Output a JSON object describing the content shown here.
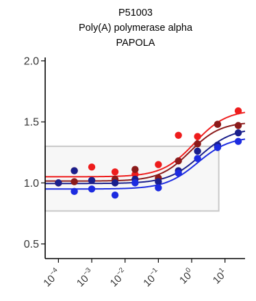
{
  "chart_data": {
    "type": "scatter",
    "title_lines": [
      "P51003",
      "Poly(A) polymerase alpha",
      "PAPOLA"
    ],
    "xlabel": "",
    "ylabel": "",
    "x_scale": "log10",
    "xlim": [
      4e-05,
      40
    ],
    "ylim": [
      0.38,
      2.05
    ],
    "y_ticks": [
      {
        "value": 0.5,
        "label": "0.5"
      },
      {
        "value": 1.0,
        "label": "1.0"
      },
      {
        "value": 1.5,
        "label": "1.5"
      },
      {
        "value": 2.0,
        "label": "2.0"
      }
    ],
    "x_ticks": [
      {
        "value": 0.0001,
        "base": "10",
        "exp": "−4"
      },
      {
        "value": 0.001,
        "base": "10",
        "exp": "−3"
      },
      {
        "value": 0.01,
        "base": "10",
        "exp": "−2"
      },
      {
        "value": 0.1,
        "base": "10",
        "exp": "−1"
      },
      {
        "value": 1,
        "base": "10",
        "exp": "0"
      },
      {
        "value": 10,
        "base": "10",
        "exp": "1"
      }
    ],
    "reference_box": {
      "x": [
        4e-05,
        6.5
      ],
      "y": [
        0.77,
        1.3
      ]
    },
    "series": [
      {
        "color": "#ee1c1c",
        "points": [
          [
            0.0001,
            1.0
          ],
          [
            0.0003,
            1.1
          ],
          [
            0.001,
            1.13
          ],
          [
            0.005,
            1.09
          ],
          [
            0.02,
            1.07
          ],
          [
            0.1,
            1.15
          ],
          [
            0.4,
            1.39
          ],
          [
            1.5,
            1.38
          ],
          [
            6,
            1.48
          ],
          [
            25,
            1.59
          ]
        ],
        "fit": {
          "bottom": 1.05,
          "top": 1.6,
          "ec50": 1.2,
          "hill": 0.9
        }
      },
      {
        "color": "#8b1a1a",
        "points": [
          [
            0.0001,
            1.0
          ],
          [
            0.0003,
            1.01
          ],
          [
            0.001,
            1.02
          ],
          [
            0.005,
            1.03
          ],
          [
            0.02,
            1.11
          ],
          [
            0.1,
            1.04
          ],
          [
            0.4,
            1.18
          ],
          [
            1.5,
            1.32
          ],
          [
            6,
            1.48
          ],
          [
            25,
            1.47
          ]
        ],
        "fit": {
          "bottom": 1.015,
          "top": 1.5,
          "ec50": 0.9,
          "hill": 0.95
        }
      },
      {
        "color": "#1a1f8c",
        "points": [
          [
            0.0001,
            1.0
          ],
          [
            0.0003,
            1.1
          ],
          [
            0.001,
            1.02
          ],
          [
            0.005,
            1.0
          ],
          [
            0.02,
            1.03
          ],
          [
            0.1,
            1.01
          ],
          [
            0.4,
            1.1
          ],
          [
            1.5,
            1.26
          ],
          [
            6,
            1.31
          ],
          [
            25,
            1.41
          ]
        ],
        "fit": {
          "bottom": 0.995,
          "top": 1.45,
          "ec50": 1.8,
          "hill": 0.9
        }
      },
      {
        "color": "#1c2be0",
        "points": [
          [
            0.0003,
            0.93
          ],
          [
            0.001,
            0.95
          ],
          [
            0.005,
            0.9
          ],
          [
            0.02,
            1.0
          ],
          [
            0.1,
            0.96
          ],
          [
            0.4,
            1.08
          ],
          [
            1.5,
            1.2
          ],
          [
            6,
            1.29
          ],
          [
            25,
            1.34
          ]
        ],
        "fit": {
          "bottom": 0.95,
          "top": 1.38,
          "ec50": 1.5,
          "hill": 0.9
        }
      }
    ]
  }
}
